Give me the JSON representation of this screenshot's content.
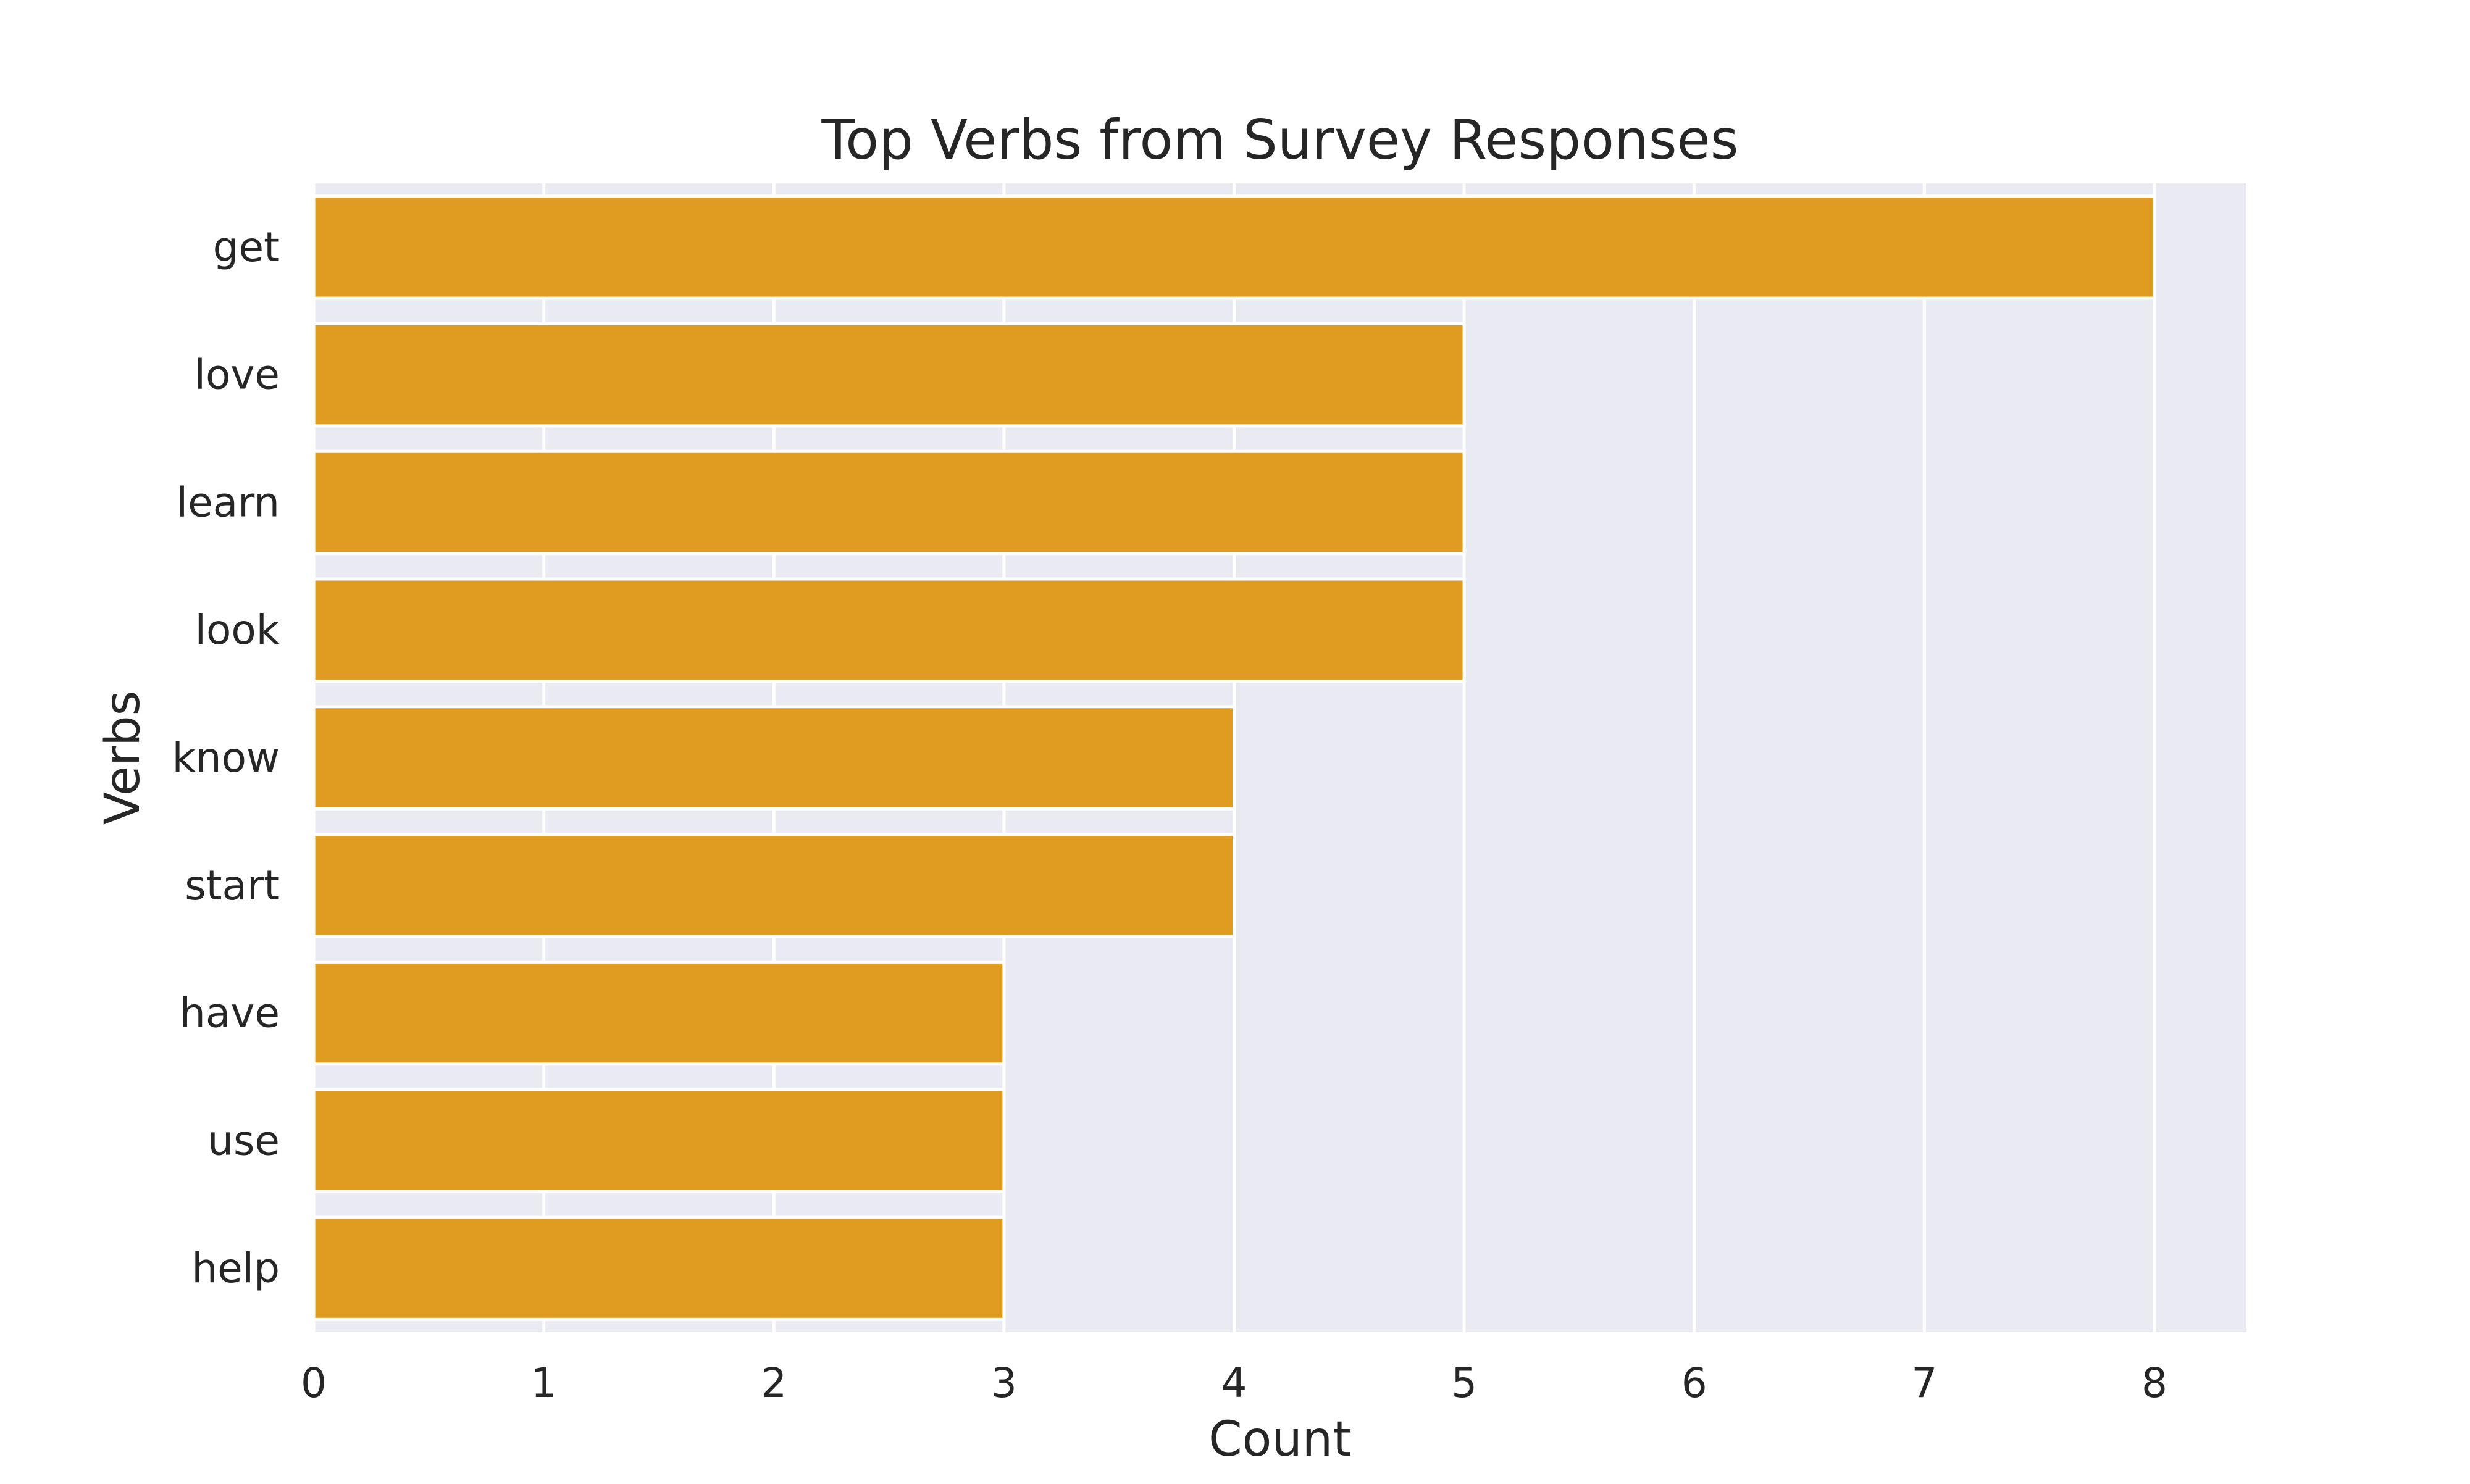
{
  "chart_data": {
    "type": "bar",
    "orientation": "horizontal",
    "title": "Top Verbs from Survey Responses",
    "xlabel": "Count",
    "ylabel": "Verbs",
    "categories": [
      "get",
      "love",
      "learn",
      "look",
      "know",
      "start",
      "have",
      "use",
      "help"
    ],
    "values": [
      8,
      5,
      5,
      5,
      4,
      4,
      3,
      3,
      3
    ],
    "xlim": [
      0,
      8.4
    ],
    "xticks": [
      0,
      1,
      2,
      3,
      4,
      5,
      6,
      7,
      8
    ],
    "grid": true,
    "legend": "none",
    "colors": {
      "bar": "#E09C21",
      "plot_background": "#EAEAF2",
      "grid": "#FFFFFF",
      "text": "#262626"
    }
  }
}
